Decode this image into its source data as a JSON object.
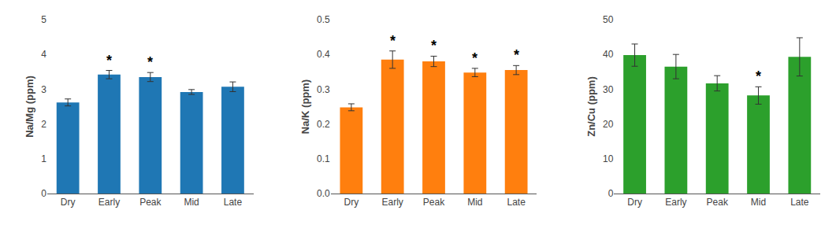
{
  "chart_data": [
    {
      "type": "bar",
      "categories": [
        "Dry",
        "Early",
        "Peak",
        "Mid",
        "Late"
      ],
      "ylabel": "Na/Mg (ppm)",
      "values": [
        2.62,
        3.42,
        3.35,
        2.92,
        3.07
      ],
      "errors": [
        0.1,
        0.12,
        0.13,
        0.07,
        0.14
      ],
      "ylim": [
        0,
        5
      ],
      "yticks": [
        0,
        1,
        2,
        3,
        4,
        5
      ],
      "annotations": [
        {
          "x": "Early",
          "text": "*"
        },
        {
          "x": "Peak",
          "text": "*"
        }
      ],
      "grid": false
    },
    {
      "type": "bar",
      "categories": [
        "Dry",
        "Early",
        "Peak",
        "Mid",
        "Late"
      ],
      "ylabel": "Na/K (ppm)",
      "values": [
        0.248,
        0.385,
        0.38,
        0.348,
        0.355
      ],
      "errors": [
        0.01,
        0.025,
        0.015,
        0.012,
        0.013
      ],
      "ylim": [
        0.0,
        0.5
      ],
      "yticks": [
        {
          "value": 0.0,
          "label": "0.0"
        },
        0.1,
        0.2,
        0.3,
        0.4,
        0.5
      ],
      "annotations": [
        {
          "x": "Early",
          "text": "*"
        },
        {
          "x": "Peak",
          "text": "*"
        },
        {
          "x": "Mid",
          "text": "*"
        },
        {
          "x": "Late",
          "text": "*"
        }
      ],
      "grid": false
    },
    {
      "type": "bar",
      "categories": [
        "Dry",
        "Early",
        "Peak",
        "Mid",
        "Late"
      ],
      "ylabel": "Zn/Cu (ppm)",
      "values": [
        39.8,
        36.5,
        31.7,
        28.2,
        39.3
      ],
      "errors": [
        3.2,
        3.5,
        2.2,
        2.5,
        5.5
      ],
      "ylim": [
        0,
        50
      ],
      "yticks": [
        0,
        10,
        20,
        30,
        40,
        50
      ],
      "annotations": [
        {
          "x": "Mid",
          "text": "*"
        }
      ],
      "grid": false
    }
  ]
}
